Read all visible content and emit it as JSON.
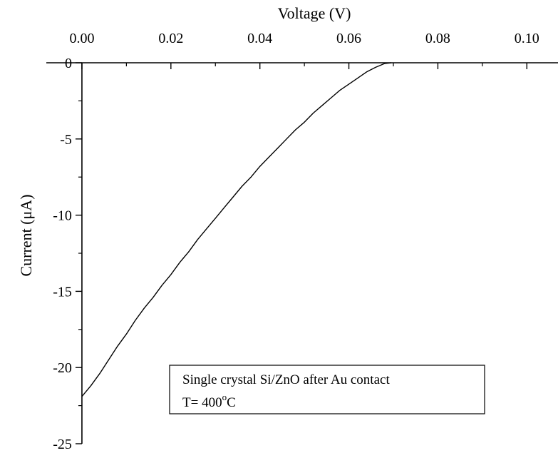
{
  "chart_data": {
    "type": "line",
    "title": "",
    "xlabel": "Voltage (V)",
    "ylabel": "Current (μA)",
    "x_axis_position": "top",
    "xlim": [
      -0.008,
      0.107
    ],
    "ylim": [
      -25,
      0
    ],
    "x_ticks": [
      0.0,
      0.02,
      0.04,
      0.06,
      0.08,
      0.1
    ],
    "x_tick_labels": [
      "0.00",
      "0.02",
      "0.04",
      "0.06",
      "0.08",
      "0.10"
    ],
    "y_ticks": [
      0,
      -5,
      -10,
      -15,
      -20,
      -25
    ],
    "y_tick_labels": [
      "0",
      "-5",
      "-10",
      "-15",
      "-20",
      "-25"
    ],
    "grid": false,
    "legend": {
      "placement": "bottom-center",
      "line1": "Single crystal Si/ZnO after Au contact",
      "line2_prefix": "T= 400",
      "line2_sup": "o",
      "line2_suffix": "C"
    },
    "series": [
      {
        "color": "#000000",
        "x": [
          0.0,
          0.002,
          0.004,
          0.006,
          0.008,
          0.01,
          0.012,
          0.014,
          0.016,
          0.018,
          0.02,
          0.022,
          0.024,
          0.026,
          0.028,
          0.03,
          0.032,
          0.034,
          0.036,
          0.038,
          0.04,
          0.042,
          0.044,
          0.046,
          0.048,
          0.05,
          0.052,
          0.054,
          0.056,
          0.058,
          0.06,
          0.062,
          0.064,
          0.066,
          0.068,
          0.0695
        ],
        "y": [
          -21.9,
          -21.2,
          -20.4,
          -19.5,
          -18.6,
          -17.8,
          -16.9,
          -16.1,
          -15.4,
          -14.6,
          -13.9,
          -13.1,
          -12.4,
          -11.6,
          -10.9,
          -10.2,
          -9.5,
          -8.8,
          -8.1,
          -7.5,
          -6.8,
          -6.2,
          -5.6,
          -5.0,
          -4.4,
          -3.9,
          -3.3,
          -2.8,
          -2.3,
          -1.8,
          -1.4,
          -1.0,
          -0.6,
          -0.3,
          -0.05,
          0.0
        ]
      }
    ]
  }
}
